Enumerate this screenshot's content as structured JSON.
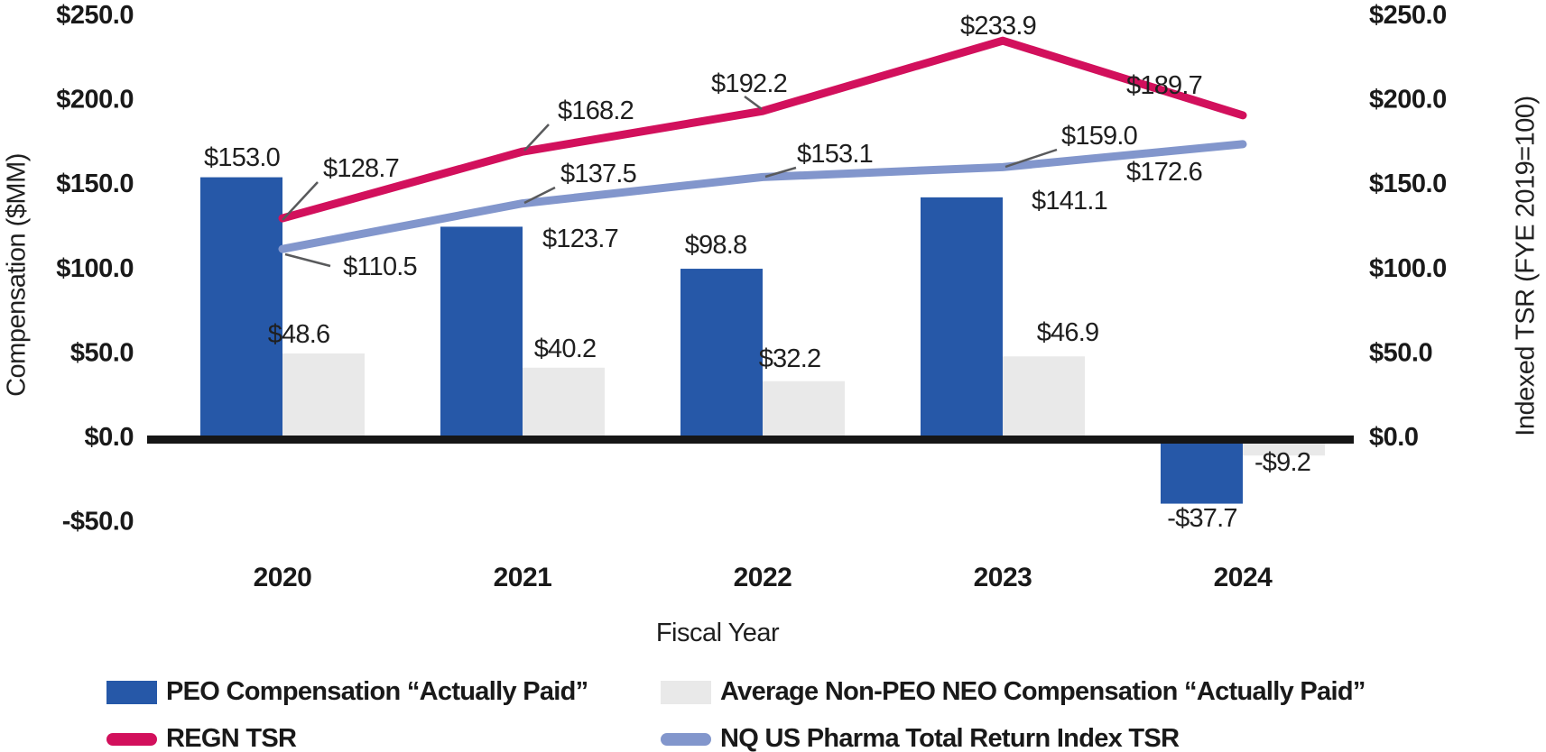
{
  "chart_data": {
    "type": "combo_bar_line",
    "title": "",
    "categories": [
      "2020",
      "2021",
      "2022",
      "2023",
      "2024"
    ],
    "xlabel": "Fiscal Year",
    "ylabel_left": "Compensation ($MM)",
    "ylabel_right": "Indexed TSR (FYE 2019=100)",
    "ylim_left": [
      -50,
      250
    ],
    "ylim_right": [
      0,
      250
    ],
    "grid": false,
    "legend_position": "bottom",
    "y_axis_left": {
      "tick_labels": [
        "$250.0",
        "$200.0",
        "$150.0",
        "$100.0",
        "$50.0",
        "$0.0",
        "-$50.0"
      ],
      "tick_values": [
        250,
        200,
        150,
        100,
        50,
        0,
        -50
      ]
    },
    "y_axis_right": {
      "tick_labels": [
        "$250.0",
        "$200.0",
        "$150.0",
        "$100.0",
        "$50.0",
        "$0.0"
      ],
      "tick_values": [
        250,
        200,
        150,
        100,
        50,
        0
      ]
    },
    "bar_series": [
      {
        "name": "PEO Compensation “Actually Paid”",
        "color": "#2658a8",
        "values": [
          153.0,
          123.7,
          98.8,
          141.1,
          -37.7
        ],
        "labels": [
          "$153.0",
          "$123.7",
          "$98.8",
          "$141.1",
          "-$37.7"
        ]
      },
      {
        "name": "Average Non-PEO NEO Compensation “Actually Paid”",
        "color": "#e9e9e9",
        "values": [
          48.6,
          40.2,
          32.2,
          46.9,
          -9.2
        ],
        "labels": [
          "$48.6",
          "$40.2",
          "$32.2",
          "$46.9",
          "-$9.2"
        ]
      }
    ],
    "line_series": [
      {
        "name": "REGN TSR",
        "color": "#d2105c",
        "values": [
          128.7,
          168.2,
          192.2,
          233.9,
          189.7
        ],
        "labels": [
          "$128.7",
          "$168.2",
          "$192.2",
          "$233.9",
          "$189.7"
        ]
      },
      {
        "name": "NQ US Pharma Total Return Index TSR",
        "color": "#8296cc",
        "values": [
          110.5,
          137.5,
          153.1,
          159.0,
          172.6
        ],
        "labels": [
          "$110.5",
          "$137.5",
          "$153.1",
          "$159.0",
          "$172.6"
        ]
      }
    ],
    "colors": {
      "axis_line": "#161616",
      "leader_line": "#595a5c",
      "text": "#191919"
    }
  }
}
